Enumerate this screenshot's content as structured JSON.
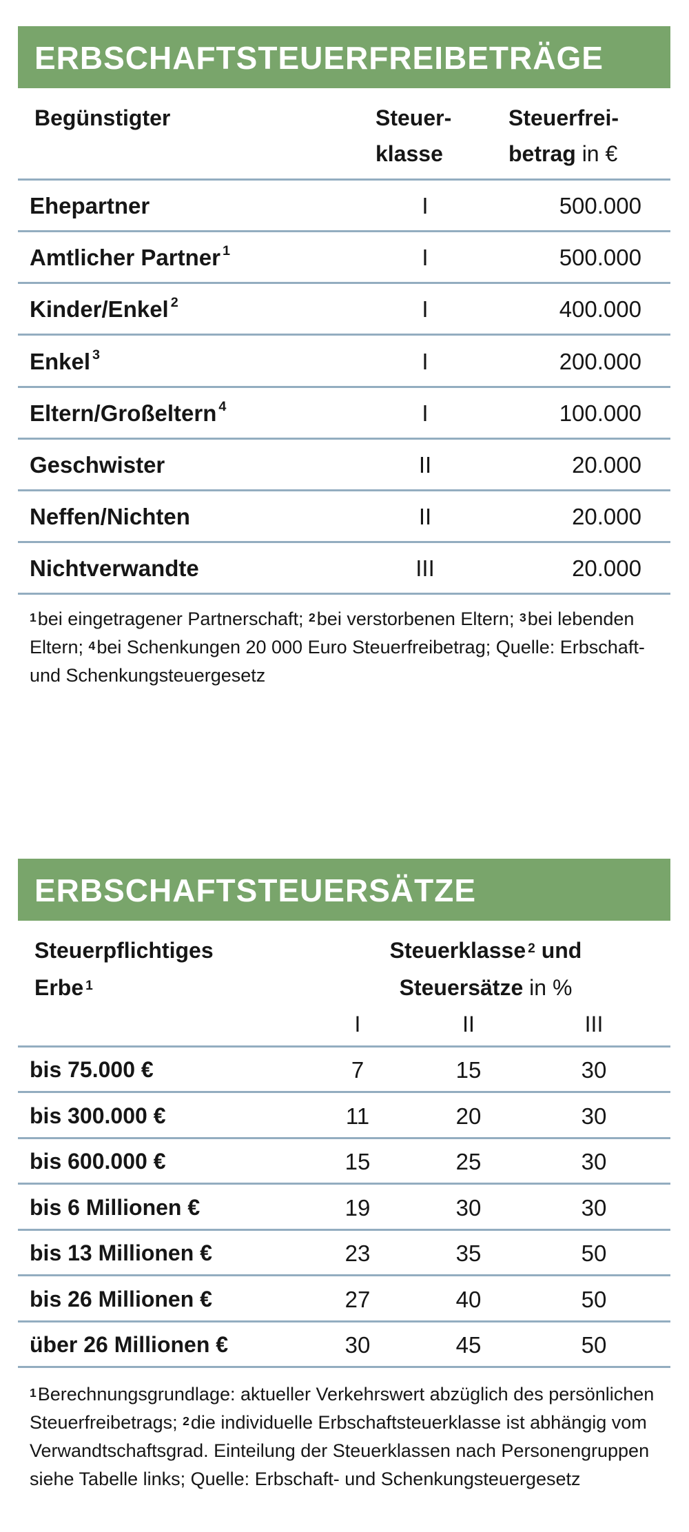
{
  "table1": {
    "title": "ERBSCHAFTSTEUERFREIBETRÄGE",
    "headers": {
      "beneficiary": "Begünstigter",
      "class_line1": "Steuer-",
      "class_line2": "klasse",
      "allowance_line1": "Steuerfrei-",
      "allowance_line2_bold": "betrag",
      "allowance_line2_unit": "in €"
    },
    "rows": [
      {
        "label": "Ehepartner",
        "sup": "",
        "class": "I",
        "allowance": "500.000"
      },
      {
        "label": "Amtlicher Partner",
        "sup": "1",
        "class": "I",
        "allowance": "500.000"
      },
      {
        "label": "Kinder/Enkel",
        "sup": "2",
        "class": "I",
        "allowance": "400.000"
      },
      {
        "label": "Enkel",
        "sup": "3",
        "class": "I",
        "allowance": "200.000"
      },
      {
        "label": "Eltern/Großeltern",
        "sup": "4",
        "class": "I",
        "allowance": "100.000"
      },
      {
        "label": "Geschwister",
        "sup": "",
        "class": "II",
        "allowance": "20.000"
      },
      {
        "label": "Neffen/Nichten",
        "sup": "",
        "class": "II",
        "allowance": "20.000"
      },
      {
        "label": "Nichtverwandte",
        "sup": "",
        "class": "III",
        "allowance": "20.000"
      }
    ],
    "footnotes": [
      {
        "sup": "1",
        "text": "bei eingetragener Partnerschaft; "
      },
      {
        "sup": "2",
        "text": "bei verstorbenen Eltern; "
      },
      {
        "sup": "3",
        "text": "bei lebenden Eltern; "
      },
      {
        "sup": "4",
        "text": "bei Schenkungen 20 000 Euro Steuerfreibetrag; Quelle: Erbschaft- und Schenkungsteuergesetz"
      }
    ]
  },
  "table2": {
    "title": "ERBSCHAFTSTEUERSÄTZE",
    "headers": {
      "estate_line1": "Steuerpflichtiges",
      "estate_line2": "Erbe",
      "estate_sup": "1",
      "classes_line1": "Steuerklasse",
      "classes_sup": "2",
      "classes_line1_end": "und",
      "classes_line2_bold": "Steuersätze",
      "classes_line2_unit": "in %",
      "class_columns": [
        "I",
        "II",
        "III"
      ]
    },
    "rows": [
      {
        "label": "bis 75.000 €",
        "rates": [
          "7",
          "15",
          "30"
        ]
      },
      {
        "label": "bis 300.000 €",
        "rates": [
          "11",
          "20",
          "30"
        ]
      },
      {
        "label": "bis 600.000 €",
        "rates": [
          "15",
          "25",
          "30"
        ]
      },
      {
        "label": "bis 6 Millionen €",
        "rates": [
          "19",
          "30",
          "30"
        ]
      },
      {
        "label": "bis 13 Millionen €",
        "rates": [
          "23",
          "35",
          "50"
        ]
      },
      {
        "label": "bis 26 Millionen €",
        "rates": [
          "27",
          "40",
          "50"
        ]
      },
      {
        "label": "über 26 Millionen €",
        "rates": [
          "30",
          "45",
          "50"
        ]
      }
    ],
    "footnotes": [
      {
        "sup": "1",
        "text": "Berechnungsgrundlage: aktueller Verkehrswert abzüglich des persönlichen Steuerfreibetrags; "
      },
      {
        "sup": "2",
        "text": "die individuelle Erbschaftsteuerklasse ist abhängig vom Verwandtschaftsgrad. Einteilung der Steuerklassen nach Personengruppen siehe Tabelle links; Quelle: Erbschaft- und Schenkungsteuergesetz"
      }
    ]
  },
  "colors": {
    "banner": "#79a56b",
    "rule": "#93adc0",
    "text": "#161616"
  }
}
